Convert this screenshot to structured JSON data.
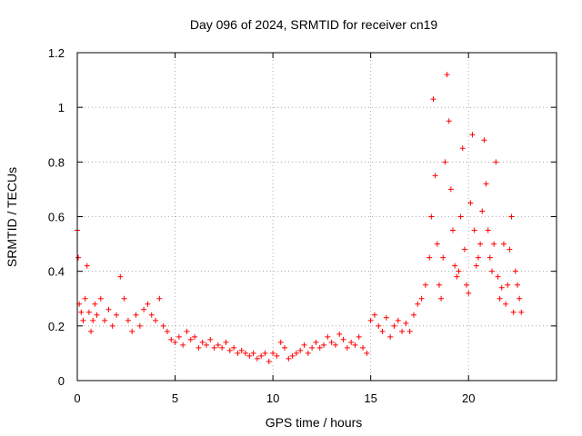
{
  "chart_data": {
    "type": "scatter",
    "title": "Day 096 of 2024, SRMTID for receiver cn19",
    "xlabel": "GPS time / hours",
    "ylabel": "SRMTID / TECUs",
    "xlim": [
      0,
      24.5
    ],
    "ylim": [
      0,
      1.2
    ],
    "xticks": [
      0,
      5,
      10,
      15,
      20
    ],
    "yticks": [
      0,
      0.2,
      0.4,
      0.6,
      0.8,
      1,
      1.2
    ],
    "ytick_labels": [
      "0",
      "0.2",
      "0.4",
      "0.6",
      "0.8",
      "1",
      "1.2"
    ],
    "grid": true,
    "marker": "+",
    "series": [
      {
        "name": "SRMTID",
        "color": "#ff0000",
        "x": [
          0.0,
          0.05,
          0.1,
          0.2,
          0.3,
          0.4,
          0.5,
          0.6,
          0.7,
          0.8,
          0.9,
          1.0,
          1.2,
          1.4,
          1.6,
          1.8,
          2.0,
          2.2,
          2.4,
          2.6,
          2.8,
          3.0,
          3.2,
          3.4,
          3.6,
          3.8,
          4.0,
          4.2,
          4.4,
          4.6,
          4.8,
          5.0,
          5.2,
          5.4,
          5.6,
          5.8,
          6.0,
          6.2,
          6.4,
          6.6,
          6.8,
          7.0,
          7.2,
          7.4,
          7.6,
          7.8,
          8.0,
          8.2,
          8.4,
          8.6,
          8.8,
          9.0,
          9.2,
          9.4,
          9.6,
          9.8,
          10.0,
          10.2,
          10.4,
          10.6,
          10.8,
          11.0,
          11.2,
          11.4,
          11.6,
          11.8,
          12.0,
          12.2,
          12.4,
          12.6,
          12.8,
          13.0,
          13.2,
          13.4,
          13.6,
          13.8,
          14.0,
          14.2,
          14.4,
          14.6,
          14.8,
          15.0,
          15.2,
          15.4,
          15.6,
          15.8,
          16.0,
          16.2,
          16.4,
          16.6,
          16.8,
          17.0,
          17.2,
          17.4,
          17.6,
          17.8,
          18.0,
          18.1,
          18.2,
          18.3,
          18.4,
          18.5,
          18.6,
          18.7,
          18.8,
          18.9,
          19.0,
          19.1,
          19.2,
          19.3,
          19.4,
          19.5,
          19.6,
          19.7,
          19.8,
          19.9,
          20.0,
          20.1,
          20.2,
          20.3,
          20.4,
          20.5,
          20.6,
          20.7,
          20.8,
          20.9,
          21.0,
          21.1,
          21.2,
          21.3,
          21.4,
          21.5,
          21.6,
          21.7,
          21.8,
          21.9,
          22.0,
          22.1,
          22.2,
          22.3,
          22.4,
          22.5,
          22.6,
          22.7
        ],
        "values": [
          0.55,
          0.45,
          0.28,
          0.25,
          0.22,
          0.3,
          0.42,
          0.25,
          0.18,
          0.22,
          0.28,
          0.24,
          0.3,
          0.22,
          0.26,
          0.2,
          0.24,
          0.38,
          0.3,
          0.22,
          0.18,
          0.24,
          0.2,
          0.26,
          0.28,
          0.24,
          0.22,
          0.3,
          0.2,
          0.18,
          0.15,
          0.14,
          0.16,
          0.13,
          0.18,
          0.15,
          0.16,
          0.12,
          0.14,
          0.13,
          0.15,
          0.12,
          0.13,
          0.12,
          0.14,
          0.11,
          0.12,
          0.1,
          0.11,
          0.1,
          0.09,
          0.1,
          0.08,
          0.09,
          0.1,
          0.07,
          0.1,
          0.09,
          0.14,
          0.12,
          0.08,
          0.09,
          0.1,
          0.11,
          0.13,
          0.1,
          0.12,
          0.14,
          0.12,
          0.13,
          0.16,
          0.14,
          0.13,
          0.17,
          0.15,
          0.12,
          0.14,
          0.13,
          0.16,
          0.12,
          0.1,
          0.22,
          0.24,
          0.2,
          0.18,
          0.23,
          0.16,
          0.2,
          0.22,
          0.18,
          0.21,
          0.18,
          0.24,
          0.28,
          0.3,
          0.35,
          0.45,
          0.6,
          1.03,
          0.75,
          0.5,
          0.35,
          0.3,
          0.45,
          0.8,
          1.12,
          0.95,
          0.7,
          0.55,
          0.42,
          0.38,
          0.4,
          0.6,
          0.85,
          0.48,
          0.35,
          0.32,
          0.65,
          0.9,
          0.55,
          0.42,
          0.45,
          0.5,
          0.62,
          0.88,
          0.72,
          0.55,
          0.45,
          0.4,
          0.5,
          0.8,
          0.38,
          0.3,
          0.34,
          0.5,
          0.28,
          0.35,
          0.48,
          0.6,
          0.25,
          0.4,
          0.35,
          0.3,
          0.25
        ]
      }
    ]
  }
}
